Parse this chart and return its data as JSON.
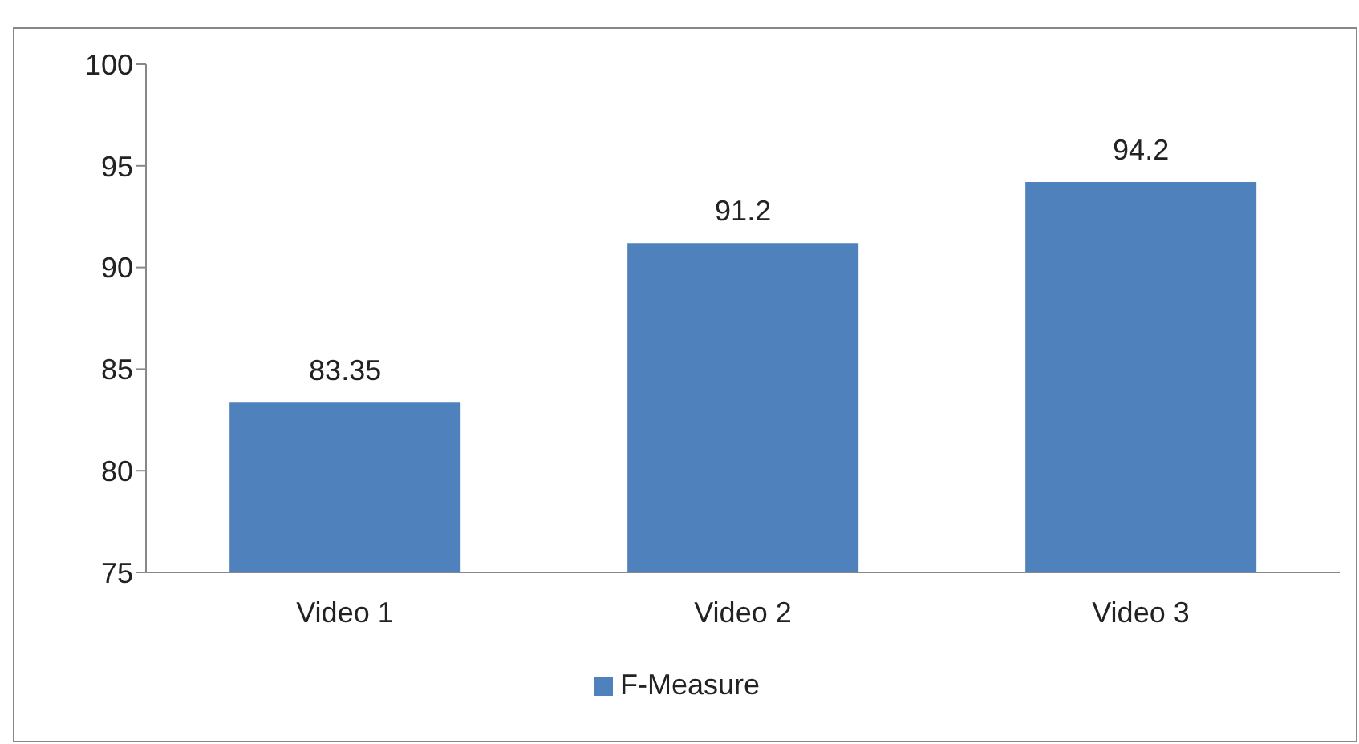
{
  "chart_data": {
    "type": "bar",
    "categories": [
      "Video 1",
      "Video 2",
      "Video 3"
    ],
    "series": [
      {
        "name": "F-Measure",
        "color": "#4f81bd",
        "values": [
          83.35,
          91.2,
          94.2
        ]
      }
    ],
    "ylim": [
      75,
      100
    ],
    "yticks": [
      75,
      80,
      85,
      90,
      95,
      100
    ],
    "legend": "bottom",
    "data_labels": true
  }
}
